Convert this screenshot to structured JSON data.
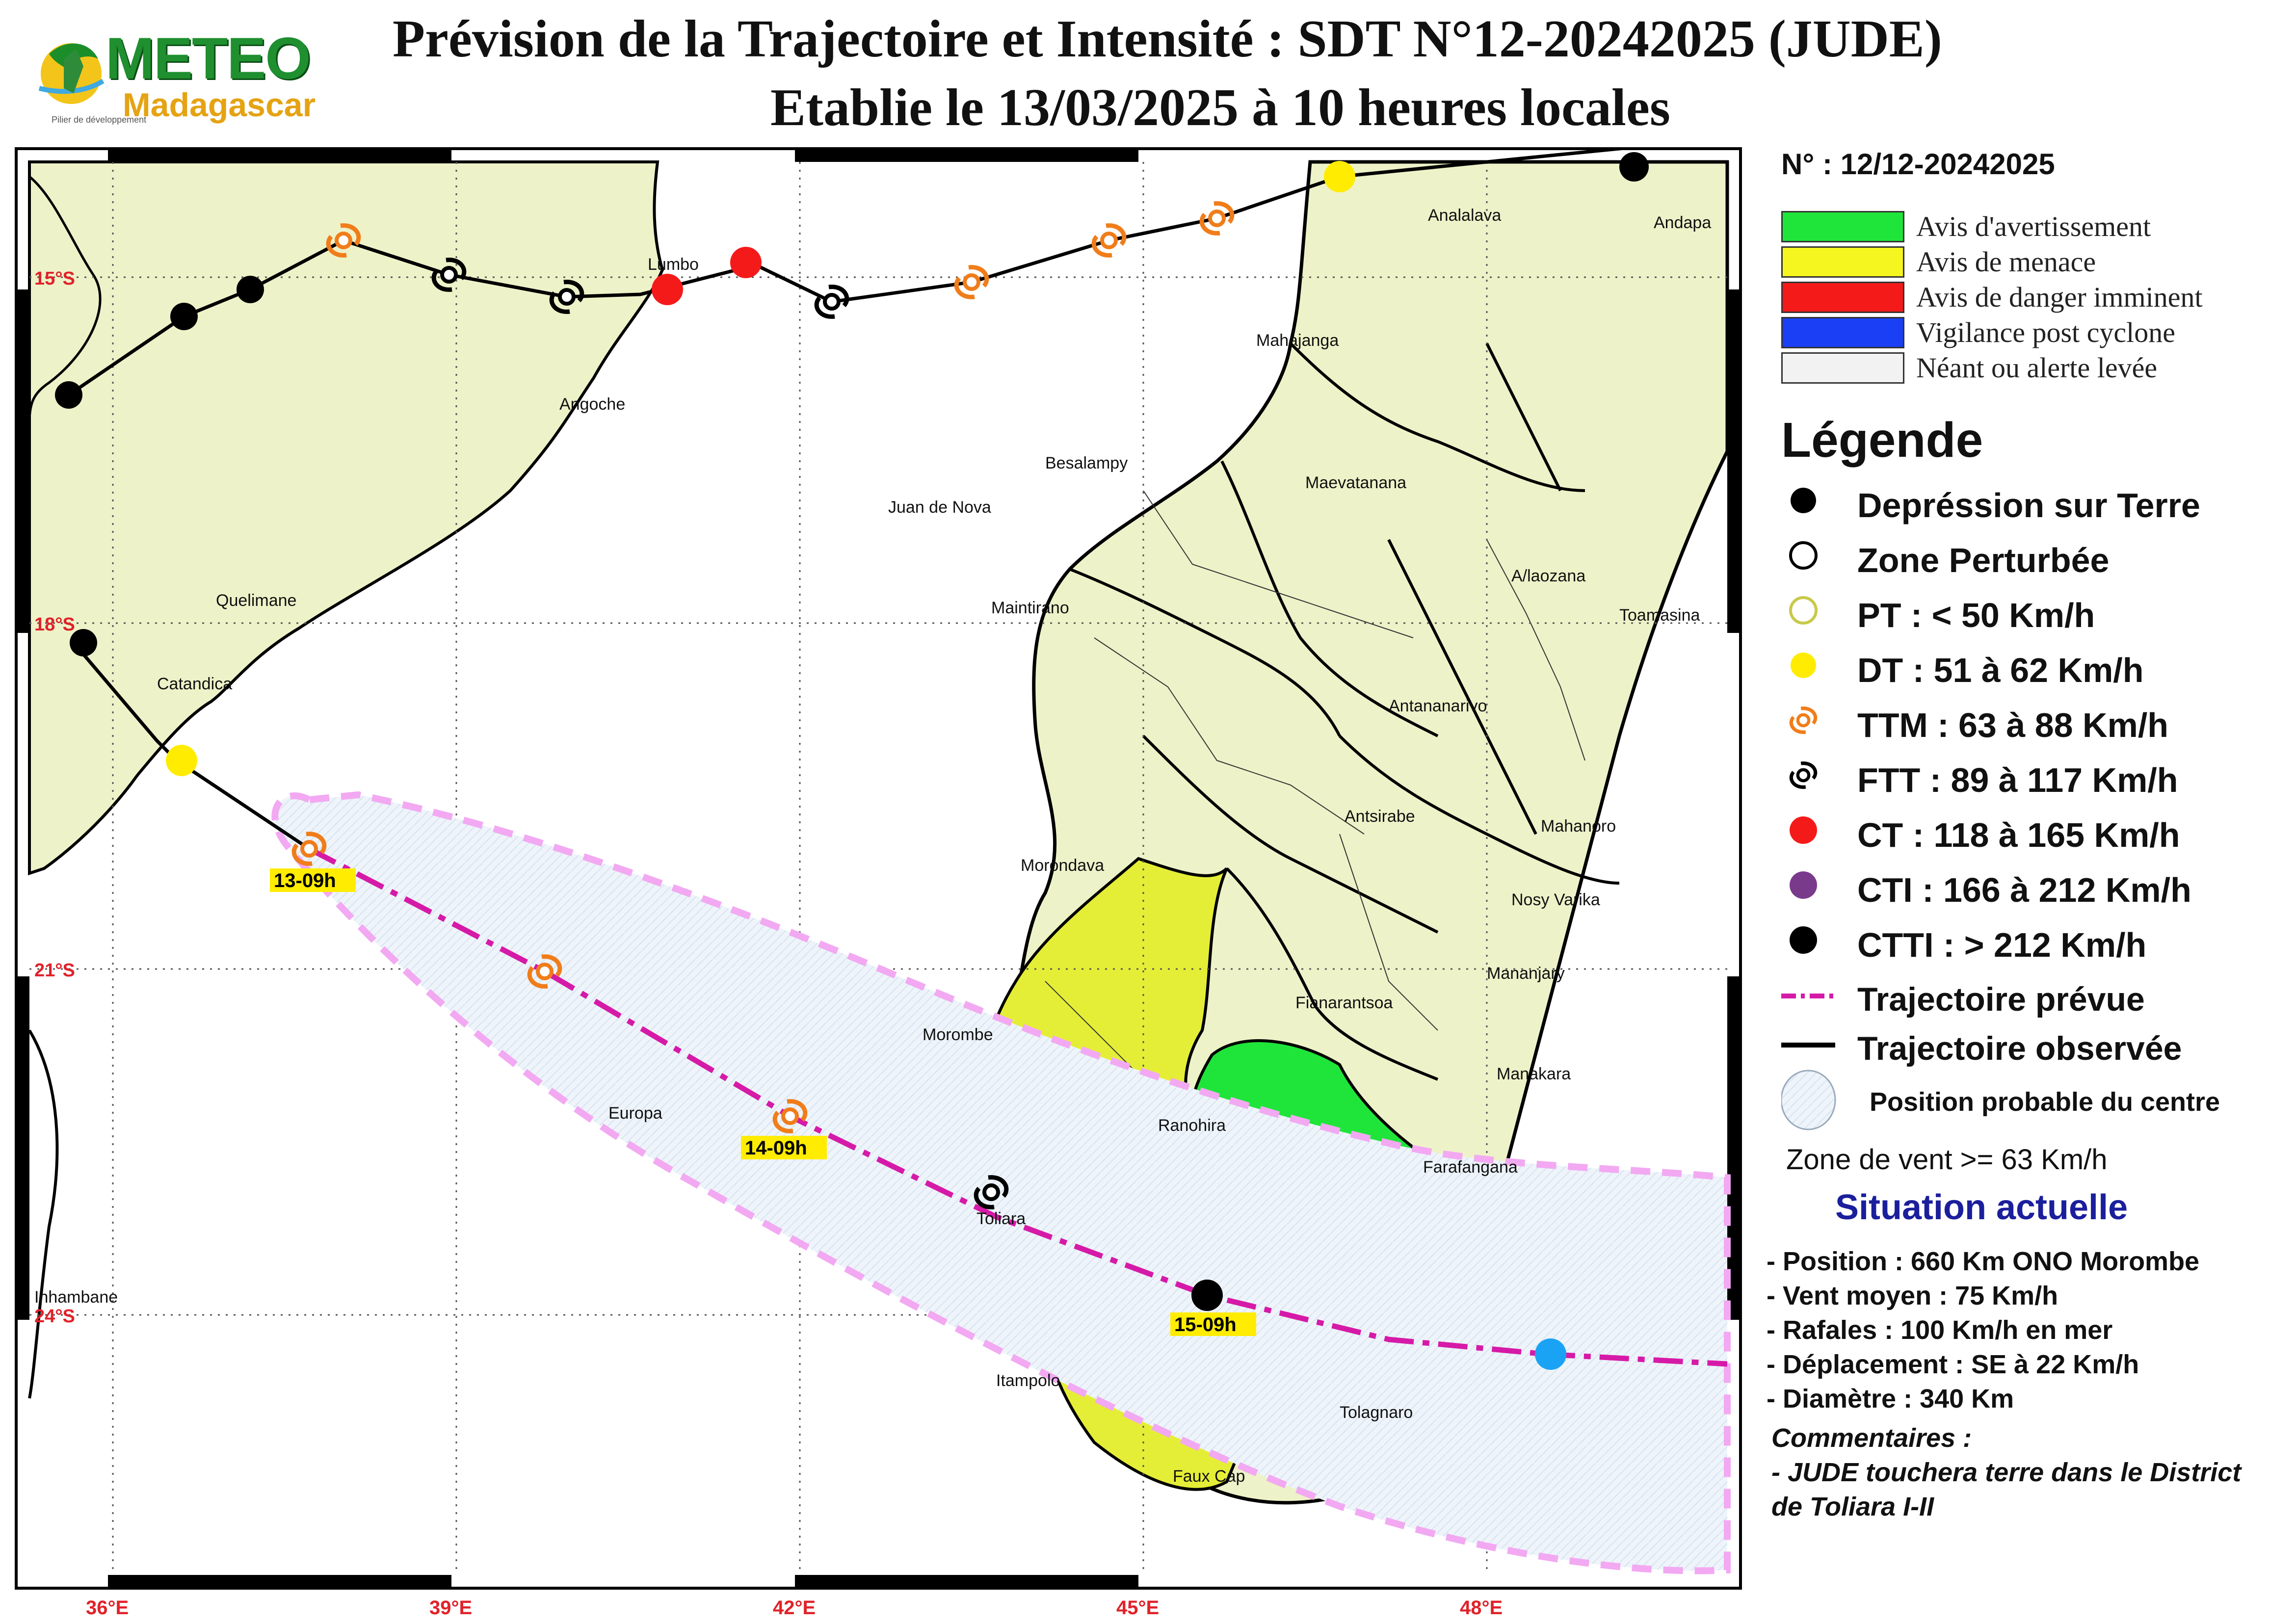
{
  "header": {
    "title_line1": "Prévision de la Trajectoire et Intensité : SDT N°12-20242025 (JUDE)",
    "title_line2": "Etablie le 13/03/2025 à 10 heures locales",
    "logo_text": "METEO",
    "logo_subtext": "Madagascar",
    "logo_tagline": "Pilier de développement"
  },
  "map": {
    "lon_labels": [
      "36°E",
      "39°E",
      "42°E",
      "45°E",
      "48°E"
    ],
    "lat_labels": [
      "15°S",
      "18°S",
      "21°S",
      "24°S"
    ],
    "places": [
      {
        "name": "Lumbo"
      },
      {
        "name": "Angoche"
      },
      {
        "name": "Quelimane"
      },
      {
        "name": "Catandica"
      },
      {
        "name": "Inhambane"
      },
      {
        "name": "Europa"
      },
      {
        "name": "Juan de Nova"
      },
      {
        "name": "Analalava"
      },
      {
        "name": "Andapa"
      },
      {
        "name": "Mahajanga"
      },
      {
        "name": "Besalampy"
      },
      {
        "name": "Maevatanana"
      },
      {
        "name": "Maintirano"
      },
      {
        "name": "A/laozana"
      },
      {
        "name": "Toamasina"
      },
      {
        "name": "Antananarivo"
      },
      {
        "name": "Antsirabe"
      },
      {
        "name": "Mahanoro"
      },
      {
        "name": "Morondava"
      },
      {
        "name": "Nosy Varika"
      },
      {
        "name": "Mananjary"
      },
      {
        "name": "Fianarantsoa"
      },
      {
        "name": "Morombe"
      },
      {
        "name": "Manakara"
      },
      {
        "name": "Ranohira"
      },
      {
        "name": "Farafangana"
      },
      {
        "name": "Toliara"
      },
      {
        "name": "Itampolo"
      },
      {
        "name": "Tolagnaro"
      },
      {
        "name": "Faux Cap"
      }
    ],
    "forecast_labels": [
      "13-09h",
      "14-09h",
      "15-09h"
    ]
  },
  "legend": {
    "bulletin_number": "N° : 12/12-20242025",
    "alerts": [
      {
        "label": "Avis d'avertissement",
        "color": "#1fe53a"
      },
      {
        "label": "Avis de menace",
        "color": "#f5f51f"
      },
      {
        "label": "Avis de danger imminent",
        "color": "#f51a1a"
      },
      {
        "label": "Vigilance post cyclone",
        "color": "#1a3ff5"
      },
      {
        "label": "Néant ou alerte levée",
        "color": "#f2f2f2"
      }
    ],
    "title": "Légende",
    "items": [
      {
        "label": "Depréssion sur Terre",
        "icon": "filled-black-circle-icon"
      },
      {
        "label": "Zone Perturbée",
        "icon": "open-black-circle-icon"
      },
      {
        "label": "PT : < 50 Km/h",
        "icon": "open-yellow-circle-icon"
      },
      {
        "label": "DT : 51 à 62 Km/h",
        "icon": "yellow-dot-icon"
      },
      {
        "label": "TTM : 63 à 88 Km/h",
        "icon": "orange-cyclone-icon"
      },
      {
        "label": "FTT : 89 à 117 Km/h",
        "icon": "black-cyclone-icon"
      },
      {
        "label": "CT : 118 à 165 Km/h",
        "icon": "red-cyclone-icon"
      },
      {
        "label": "CTI : 166 à 212 Km/h",
        "icon": "purple-cyclone-icon"
      },
      {
        "label": "CTTI : > 212 Km/h",
        "icon": "black-filled-cyclone-icon"
      }
    ],
    "forecast_track": "Trajectoire prévue",
    "observed_track": "Trajectoire observée",
    "probable_position": "Position probable du centre",
    "wind_zone": "Zone de vent >= 63 Km/h",
    "situation_title": "Situation actuelle",
    "situation_lines": [
      "- Position : 660 Km ONO Morombe",
      "- Vent moyen : 75 Km/h",
      "- Rafales : 100 Km/h en mer",
      "- Déplacement : SE à 22 Km/h",
      "- Diamètre : 340 Km"
    ],
    "comments_title": "Commentaires :",
    "comments_lines": [
      "- JUDE touchera terre dans le District",
      "de Toliara I-II"
    ]
  }
}
